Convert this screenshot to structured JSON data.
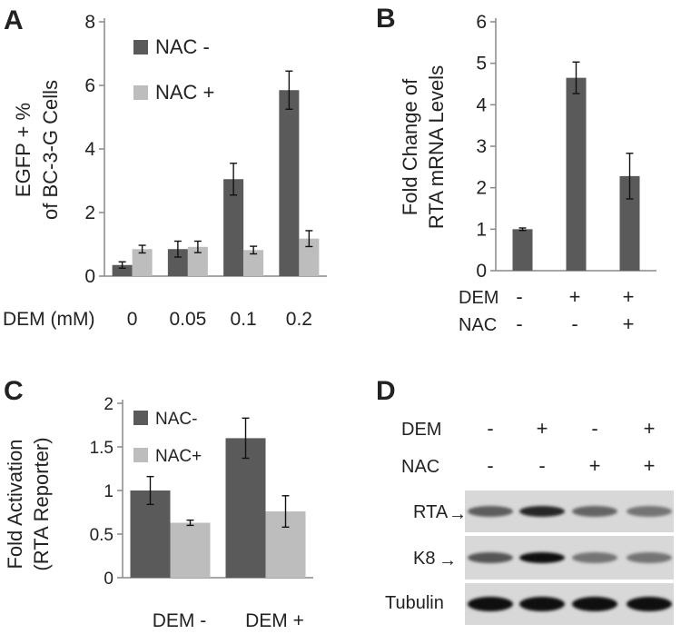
{
  "colors": {
    "nac_minus": "#5a5a5a",
    "nac_plus": "#bdbdbd",
    "axis": "#888888",
    "text": "#222222"
  },
  "panels": {
    "A": {
      "letter": "A",
      "ylabel_line1": "EGFP + %",
      "ylabel_line2": "of BC-3-G Cells",
      "xlabel": "DEM (mM)"
    },
    "B": {
      "letter": "B",
      "ylabel_line1": "Fold Change of",
      "ylabel_line2": "RTA mRNA Levels",
      "row_labels": [
        "DEM",
        "NAC"
      ],
      "dem_signs": [
        "-",
        "+",
        "+"
      ],
      "nac_signs": [
        "-",
        "-",
        "+"
      ]
    },
    "C": {
      "letter": "C",
      "ylabel_line1": "Fold Activation",
      "ylabel_line2": "(RTA Reporter)"
    },
    "D": {
      "letter": "D",
      "row_labels": [
        "DEM",
        "NAC"
      ],
      "dem_signs": [
        "-",
        "+",
        "-",
        "+"
      ],
      "nac_signs": [
        "-",
        "-",
        "+",
        "+"
      ],
      "blot_labels": [
        "RTA",
        "K8",
        "Tubulin"
      ],
      "band_intensity": {
        "RTA": [
          0.5,
          0.85,
          0.45,
          0.35
        ],
        "K8": [
          0.55,
          1.0,
          0.35,
          0.35
        ],
        "Tubulin": [
          1.0,
          1.0,
          1.0,
          1.0
        ]
      }
    }
  },
  "chart_data": [
    {
      "type": "bar",
      "panel": "A",
      "categories": [
        "0",
        "0.05",
        "0.1",
        "0.2"
      ],
      "series": [
        {
          "name": "NAC -",
          "values": [
            0.35,
            0.85,
            3.05,
            5.85
          ],
          "errors": [
            0.1,
            0.25,
            0.5,
            0.6
          ]
        },
        {
          "name": "NAC +",
          "values": [
            0.85,
            0.92,
            0.82,
            1.18
          ],
          "errors": [
            0.12,
            0.18,
            0.12,
            0.25
          ]
        }
      ],
      "xlabel": "DEM (mM)",
      "ylabel": "EGFP + % of BC-3-G Cells",
      "ylim": [
        0,
        8
      ],
      "yticks": [
        "0",
        "2",
        "4",
        "6",
        "8"
      ],
      "legend": "top-left"
    },
    {
      "type": "bar",
      "panel": "B",
      "categories": [
        "DEM - / NAC -",
        "DEM + / NAC -",
        "DEM + / NAC +"
      ],
      "values": [
        1.0,
        4.65,
        2.28
      ],
      "errors": [
        0.03,
        0.38,
        0.55
      ],
      "ylabel": "Fold Change of RTA mRNA Levels",
      "ylim": [
        0,
        6
      ],
      "yticks": [
        "0",
        "1",
        "2",
        "3",
        "4",
        "5",
        "6"
      ]
    },
    {
      "type": "bar",
      "panel": "C",
      "categories": [
        "DEM -",
        "DEM +"
      ],
      "series": [
        {
          "name": "NAC-",
          "values": [
            1.0,
            1.6
          ],
          "errors": [
            0.16,
            0.23
          ]
        },
        {
          "name": "NAC+",
          "values": [
            0.63,
            0.76
          ],
          "errors": [
            0.03,
            0.18
          ]
        }
      ],
      "ylabel": "Fold Activation (RTA Reporter)",
      "ylim": [
        0,
        2
      ],
      "yticks": [
        "0",
        "0.5",
        "1",
        "1.5",
        "2"
      ],
      "legend": "top-left"
    }
  ]
}
